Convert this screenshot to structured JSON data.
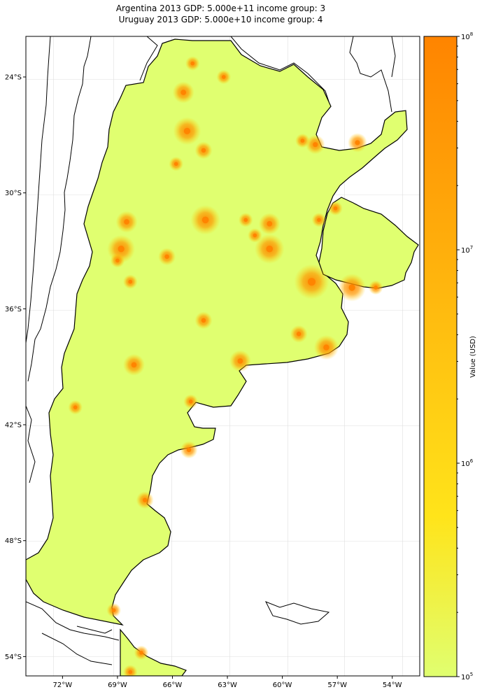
{
  "title_line1": "Argentina 2013 GDP: 5.000e+11 income group: 3",
  "title_line2": "Uruguay 2013 GDP: 5.000e+10 income group: 4",
  "colorbar": {
    "label": "Value (USD)",
    "scale": "log",
    "ticks": [
      {
        "exp": 5,
        "label": "10",
        "sup": "5"
      },
      {
        "exp": 6,
        "label": "10",
        "sup": "6"
      },
      {
        "exp": 7,
        "label": "10",
        "sup": "7"
      },
      {
        "exp": 8,
        "label": "10",
        "sup": "8"
      }
    ],
    "range": [
      100000,
      100000000
    ],
    "color_low": "#e0ff70",
    "color_mid": "#ffe41a",
    "color_high": "#ff8400"
  },
  "chart_data": {
    "type": "heatmap",
    "xlim": [
      -74.0,
      -52.5
    ],
    "ylim": [
      -55.0,
      -21.9
    ],
    "x_ticks": [
      {
        "value": -72,
        "label": "72°W"
      },
      {
        "value": -69,
        "label": "69°W"
      },
      {
        "value": -66,
        "label": "66°W"
      },
      {
        "value": -63,
        "label": "63°W"
      },
      {
        "value": -60,
        "label": "60°W"
      },
      {
        "value": -57,
        "label": "57°W"
      },
      {
        "value": -54,
        "label": "54°W"
      }
    ],
    "y_ticks": [
      {
        "value": -24,
        "label": "24°S"
      },
      {
        "value": -30,
        "label": "30°S"
      },
      {
        "value": -36,
        "label": "36°S"
      },
      {
        "value": -42,
        "label": "42°S"
      },
      {
        "value": -48,
        "label": "48°S"
      },
      {
        "value": -54,
        "label": "54°S"
      }
    ],
    "grid": true,
    "base_fill": "#e0ff70",
    "hotspots": [
      {
        "lon": -58.4,
        "lat": -34.6,
        "value": 100000000
      },
      {
        "lon": -64.2,
        "lat": -31.4,
        "value": 30000000
      },
      {
        "lon": -60.7,
        "lat": -32.9,
        "value": 30000000
      },
      {
        "lon": -68.8,
        "lat": -32.9,
        "value": 20000000
      },
      {
        "lon": -65.2,
        "lat": -26.8,
        "value": 20000000
      },
      {
        "lon": -56.2,
        "lat": -34.9,
        "value": 20000000
      },
      {
        "lon": -57.6,
        "lat": -38.0,
        "value": 10000000
      },
      {
        "lon": -62.3,
        "lat": -38.7,
        "value": 5000000
      },
      {
        "lon": -68.1,
        "lat": -38.9,
        "value": 5000000
      },
      {
        "lon": -65.4,
        "lat": -24.8,
        "value": 5000000
      },
      {
        "lon": -60.7,
        "lat": -31.6,
        "value": 5000000
      },
      {
        "lon": -68.5,
        "lat": -31.5,
        "value": 5000000
      },
      {
        "lon": -58.2,
        "lat": -27.5,
        "value": 3000000
      },
      {
        "lon": -55.9,
        "lat": -27.4,
        "value": 3000000
      },
      {
        "lon": -59.1,
        "lat": -37.3,
        "value": 2000000
      },
      {
        "lon": -66.3,
        "lat": -33.3,
        "value": 2000000
      },
      {
        "lon": -64.3,
        "lat": -27.8,
        "value": 2000000
      },
      {
        "lon": -65.1,
        "lat": -43.3,
        "value": 2000000
      },
      {
        "lon": -67.5,
        "lat": -45.9,
        "value": 2000000
      },
      {
        "lon": -64.3,
        "lat": -36.6,
        "value": 2000000
      },
      {
        "lon": -71.3,
        "lat": -41.1,
        "value": 1000000
      },
      {
        "lon": -65.8,
        "lat": -28.5,
        "value": 1000000
      },
      {
        "lon": -62.0,
        "lat": -31.4,
        "value": 1000000
      },
      {
        "lon": -61.5,
        "lat": -32.2,
        "value": 1000000
      },
      {
        "lon": -69.0,
        "lat": -33.5,
        "value": 1000000
      },
      {
        "lon": -68.3,
        "lat": -34.6,
        "value": 1000000
      },
      {
        "lon": -63.2,
        "lat": -24.0,
        "value": 1000000
      },
      {
        "lon": -64.9,
        "lat": -23.3,
        "value": 1000000
      },
      {
        "lon": -58.9,
        "lat": -27.3,
        "value": 1000000
      },
      {
        "lon": -57.1,
        "lat": -30.8,
        "value": 1000000
      },
      {
        "lon": -58.0,
        "lat": -31.4,
        "value": 1000000
      },
      {
        "lon": -54.9,
        "lat": -34.9,
        "value": 1000000
      },
      {
        "lon": -69.2,
        "lat": -51.6,
        "value": 1000000
      },
      {
        "lon": -67.7,
        "lat": -53.8,
        "value": 1000000
      },
      {
        "lon": -68.3,
        "lat": -54.8,
        "value": 1000000
      },
      {
        "lon": -65.0,
        "lat": -40.8,
        "value": 1000000
      }
    ]
  }
}
